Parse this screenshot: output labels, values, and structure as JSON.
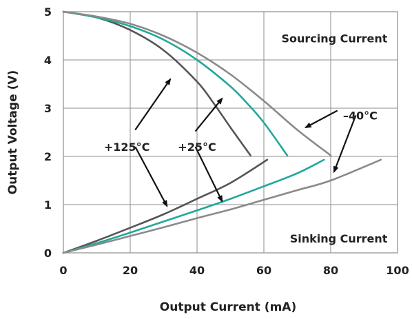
{
  "chart_data": {
    "type": "line",
    "xlabel": "Output Current (mA)",
    "ylabel": "Output Voltage (V)",
    "xlim": [
      0,
      100
    ],
    "ylim": [
      0,
      5
    ],
    "xticks": [
      0,
      20,
      40,
      60,
      80,
      100
    ],
    "yticks": [
      0,
      1,
      2,
      3,
      4,
      5
    ],
    "grid": true,
    "colors": {
      "125C": "#555555",
      "25C": "#21a89a",
      "m40C": "#8a8a8a",
      "arrow": "#111111"
    },
    "series": [
      {
        "key": "125C",
        "group": "sourcing",
        "x": [
          0,
          10,
          20,
          30,
          40,
          45,
          50,
          56
        ],
        "y": [
          5,
          4.88,
          4.62,
          4.2,
          3.55,
          3.1,
          2.6,
          2.02
        ]
      },
      {
        "key": "25C",
        "group": "sourcing",
        "x": [
          0,
          10,
          20,
          30,
          40,
          50,
          55,
          60,
          67
        ],
        "y": [
          5,
          4.88,
          4.7,
          4.42,
          4.0,
          3.45,
          3.1,
          2.7,
          2.02
        ]
      },
      {
        "key": "m40C",
        "group": "sourcing",
        "x": [
          0,
          10,
          20,
          30,
          40,
          50,
          60,
          70,
          80
        ],
        "y": [
          5,
          4.9,
          4.75,
          4.5,
          4.15,
          3.7,
          3.15,
          2.55,
          2.02
        ]
      },
      {
        "key": "125C",
        "group": "sinking",
        "x": [
          0,
          10,
          20,
          30,
          40,
          50,
          61
        ],
        "y": [
          0,
          0.25,
          0.52,
          0.8,
          1.12,
          1.45,
          1.93
        ]
      },
      {
        "key": "25C",
        "group": "sinking",
        "x": [
          0,
          10,
          20,
          30,
          40,
          50,
          60,
          70,
          78
        ],
        "y": [
          0,
          0.2,
          0.42,
          0.65,
          0.88,
          1.12,
          1.38,
          1.65,
          1.93
        ]
      },
      {
        "key": "m40C",
        "group": "sinking",
        "x": [
          0,
          10,
          20,
          30,
          40,
          50,
          60,
          70,
          80,
          95
        ],
        "y": [
          0,
          0.17,
          0.35,
          0.53,
          0.72,
          0.9,
          1.1,
          1.3,
          1.5,
          1.93
        ]
      }
    ],
    "annotations": {
      "sourcing": "Sourcing Current",
      "sinking": "Sinking Current",
      "t125": "+125°C",
      "t25": "+25°C",
      "tm40": "–40°C"
    },
    "arrows": [
      {
        "from": [
          21.5,
          2.55
        ],
        "to": [
          32,
          3.6
        ]
      },
      {
        "from": [
          21.5,
          2.2
        ],
        "to": [
          31,
          0.97
        ]
      },
      {
        "from": [
          39.5,
          2.52
        ],
        "to": [
          47.5,
          3.2
        ]
      },
      {
        "from": [
          39.5,
          2.2
        ],
        "to": [
          47.5,
          1.07
        ]
      },
      {
        "from": [
          82,
          2.95
        ],
        "to": [
          72.5,
          2.6
        ]
      },
      {
        "from": [
          87.5,
          2.85
        ],
        "to": [
          81,
          1.68
        ]
      }
    ],
    "label_positions": {
      "sourcing": [
        97,
        4.45
      ],
      "sinking": [
        97,
        0.3
      ],
      "t125": [
        19,
        2.2
      ],
      "t25": [
        40,
        2.2
      ],
      "tm40": [
        94,
        2.85
      ]
    }
  }
}
